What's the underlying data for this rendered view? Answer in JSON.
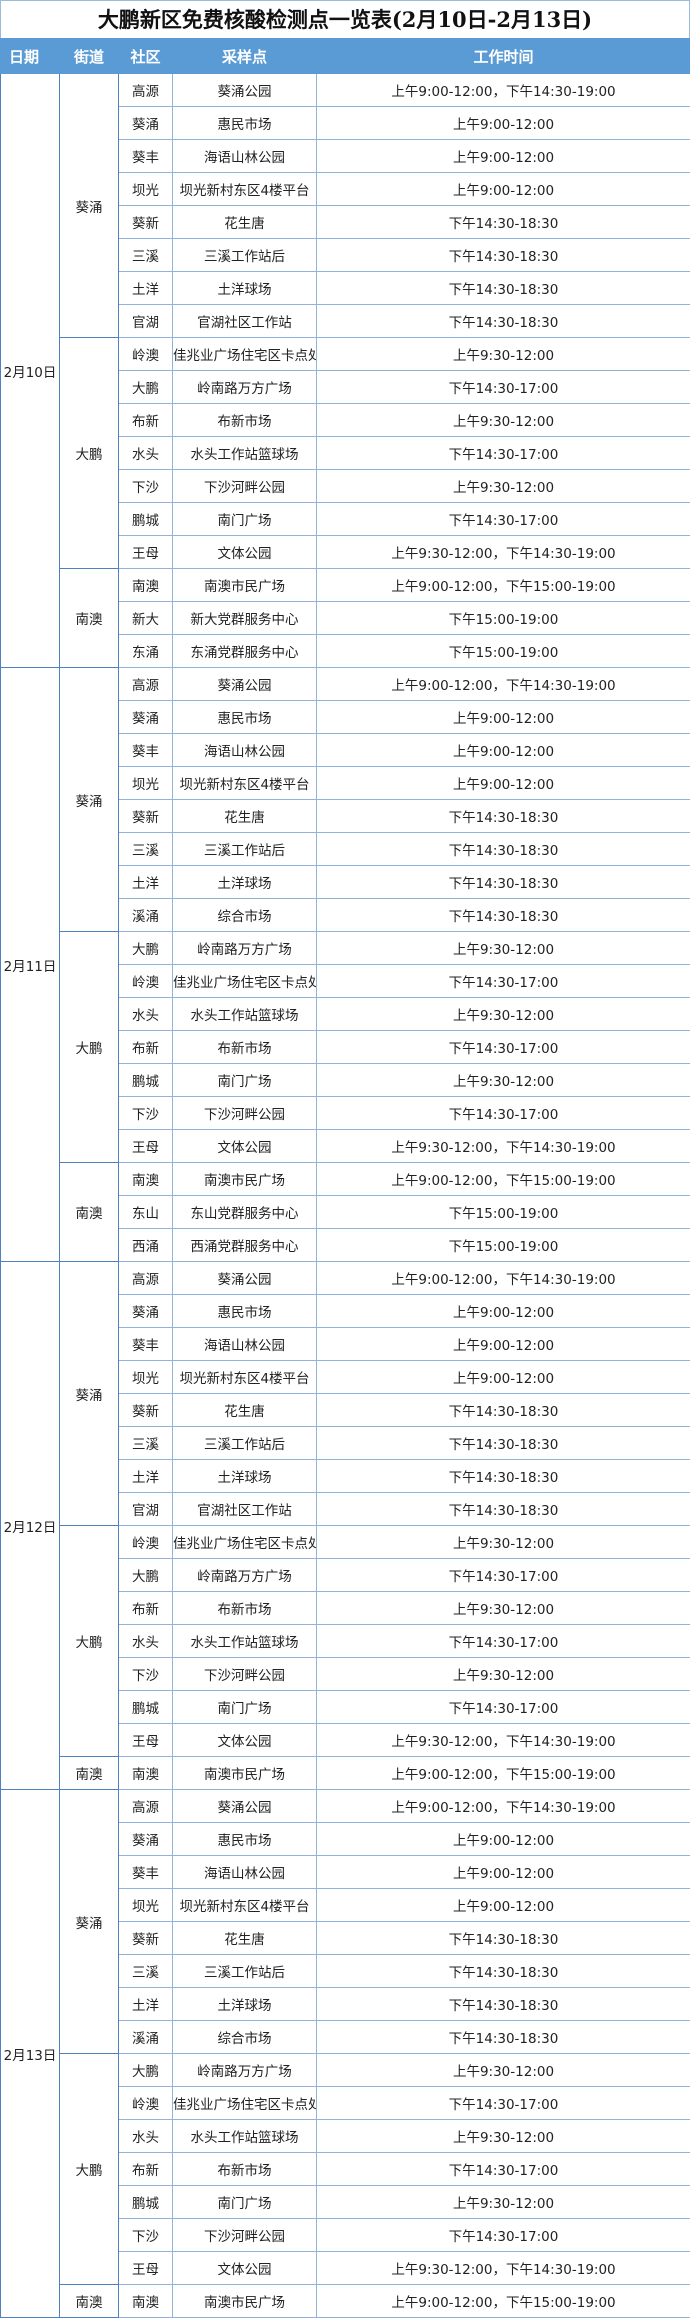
{
  "title": "大鹏新区免费核酸检测点一览表(2月10日-2月13日)",
  "headers": [
    "日期",
    "街道",
    "社区",
    "采样点",
    "工作时间"
  ],
  "colors": {
    "header_bg": "#5b9bd5",
    "header_text": "#ffffff",
    "border": "#8fb3dc"
  },
  "days": [
    {
      "date": "2月10日",
      "districts": [
        {
          "name": "葵涌",
          "rows": [
            [
              "高源",
              "葵涌公园",
              "上午9:00-12:00，下午14:30-19:00"
            ],
            [
              "葵涌",
              "惠民市场",
              "上午9:00-12:00"
            ],
            [
              "葵丰",
              "海语山林公园",
              "上午9:00-12:00"
            ],
            [
              "坝光",
              "坝光新村东区4楼平台",
              "上午9:00-12:00"
            ],
            [
              "葵新",
              "花生唐",
              "下午14:30-18:30"
            ],
            [
              "三溪",
              "三溪工作站后",
              "下午14:30-18:30"
            ],
            [
              "土洋",
              "土洋球场",
              "下午14:30-18:30"
            ],
            [
              "官湖",
              "官湖社区工作站",
              "下午14:30-18:30"
            ]
          ]
        },
        {
          "name": "大鹏",
          "rows": [
            [
              "岭澳",
              "佳兆业广场住宅区卡点处",
              "上午9:30-12:00"
            ],
            [
              "大鹏",
              "岭南路万方广场",
              "下午14:30-17:00"
            ],
            [
              "布新",
              "布新市场",
              "上午9:30-12:00"
            ],
            [
              "水头",
              "水头工作站篮球场",
              "下午14:30-17:00"
            ],
            [
              "下沙",
              "下沙河畔公园",
              "上午9:30-12:00"
            ],
            [
              "鹏城",
              "南门广场",
              "下午14:30-17:00"
            ],
            [
              "王母",
              "文体公园",
              "上午9:30-12:00，下午14:30-19:00"
            ]
          ]
        },
        {
          "name": "南澳",
          "rows": [
            [
              "南澳",
              "南澳市民广场",
              "上午9:00-12:00，下午15:00-19:00"
            ],
            [
              "新大",
              "新大党群服务中心",
              "下午15:00-19:00"
            ],
            [
              "东涌",
              "东涌党群服务中心",
              "下午15:00-19:00"
            ]
          ]
        }
      ]
    },
    {
      "date": "2月11日",
      "districts": [
        {
          "name": "葵涌",
          "rows": [
            [
              "高源",
              "葵涌公园",
              "上午9:00-12:00，下午14:30-19:00"
            ],
            [
              "葵涌",
              "惠民市场",
              "上午9:00-12:00"
            ],
            [
              "葵丰",
              "海语山林公园",
              "上午9:00-12:00"
            ],
            [
              "坝光",
              "坝光新村东区4楼平台",
              "上午9:00-12:00"
            ],
            [
              "葵新",
              "花生唐",
              "下午14:30-18:30"
            ],
            [
              "三溪",
              "三溪工作站后",
              "下午14:30-18:30"
            ],
            [
              "土洋",
              "土洋球场",
              "下午14:30-18:30"
            ],
            [
              "溪涌",
              "综合市场",
              "下午14:30-18:30"
            ]
          ]
        },
        {
          "name": "大鹏",
          "rows": [
            [
              "大鹏",
              "岭南路万方广场",
              "上午9:30-12:00"
            ],
            [
              "岭澳",
              "佳兆业广场住宅区卡点处",
              "下午14:30-17:00"
            ],
            [
              "水头",
              "水头工作站篮球场",
              "上午9:30-12:00"
            ],
            [
              "布新",
              "布新市场",
              "下午14:30-17:00"
            ],
            [
              "鹏城",
              "南门广场",
              "上午9:30-12:00"
            ],
            [
              "下沙",
              "下沙河畔公园",
              "下午14:30-17:00"
            ],
            [
              "王母",
              "文体公园",
              "上午9:30-12:00，下午14:30-19:00"
            ]
          ]
        },
        {
          "name": "南澳",
          "rows": [
            [
              "南澳",
              "南澳市民广场",
              "上午9:00-12:00，下午15:00-19:00"
            ],
            [
              "东山",
              "东山党群服务中心",
              "下午15:00-19:00"
            ],
            [
              "西涌",
              "西涌党群服务中心",
              "下午15:00-19:00"
            ]
          ]
        }
      ]
    },
    {
      "date": "2月12日",
      "districts": [
        {
          "name": "葵涌",
          "rows": [
            [
              "高源",
              "葵涌公园",
              "上午9:00-12:00，下午14:30-19:00"
            ],
            [
              "葵涌",
              "惠民市场",
              "上午9:00-12:00"
            ],
            [
              "葵丰",
              "海语山林公园",
              "上午9:00-12:00"
            ],
            [
              "坝光",
              "坝光新村东区4楼平台",
              "上午9:00-12:00"
            ],
            [
              "葵新",
              "花生唐",
              "下午14:30-18:30"
            ],
            [
              "三溪",
              "三溪工作站后",
              "下午14:30-18:30"
            ],
            [
              "土洋",
              "土洋球场",
              "下午14:30-18:30"
            ],
            [
              "官湖",
              "官湖社区工作站",
              "下午14:30-18:30"
            ]
          ]
        },
        {
          "name": "大鹏",
          "rows": [
            [
              "岭澳",
              "佳兆业广场住宅区卡点处",
              "上午9:30-12:00"
            ],
            [
              "大鹏",
              "岭南路万方广场",
              "下午14:30-17:00"
            ],
            [
              "布新",
              "布新市场",
              "上午9:30-12:00"
            ],
            [
              "水头",
              "水头工作站篮球场",
              "下午14:30-17:00"
            ],
            [
              "下沙",
              "下沙河畔公园",
              "上午9:30-12:00"
            ],
            [
              "鹏城",
              "南门广场",
              "下午14:30-17:00"
            ],
            [
              "王母",
              "文体公园",
              "上午9:30-12:00，下午14:30-19:00"
            ]
          ]
        },
        {
          "name": "南澳",
          "rows": [
            [
              "南澳",
              "南澳市民广场",
              "上午9:00-12:00，下午15:00-19:00"
            ]
          ]
        }
      ]
    },
    {
      "date": "2月13日",
      "districts": [
        {
          "name": "葵涌",
          "rows": [
            [
              "高源",
              "葵涌公园",
              "上午9:00-12:00，下午14:30-19:00"
            ],
            [
              "葵涌",
              "惠民市场",
              "上午9:00-12:00"
            ],
            [
              "葵丰",
              "海语山林公园",
              "上午9:00-12:00"
            ],
            [
              "坝光",
              "坝光新村东区4楼平台",
              "上午9:00-12:00"
            ],
            [
              "葵新",
              "花生唐",
              "下午14:30-18:30"
            ],
            [
              "三溪",
              "三溪工作站后",
              "下午14:30-18:30"
            ],
            [
              "土洋",
              "土洋球场",
              "下午14:30-18:30"
            ],
            [
              "溪涌",
              "综合市场",
              "下午14:30-18:30"
            ]
          ]
        },
        {
          "name": "大鹏",
          "rows": [
            [
              "大鹏",
              "岭南路万方广场",
              "上午9:30-12:00"
            ],
            [
              "岭澳",
              "佳兆业广场住宅区卡点处",
              "下午14:30-17:00"
            ],
            [
              "水头",
              "水头工作站篮球场",
              "上午9:30-12:00"
            ],
            [
              "布新",
              "布新市场",
              "下午14:30-17:00"
            ],
            [
              "鹏城",
              "南门广场",
              "上午9:30-12:00"
            ],
            [
              "下沙",
              "下沙河畔公园",
              "下午14:30-17:00"
            ],
            [
              "王母",
              "文体公园",
              "上午9:30-12:00，下午14:30-19:00"
            ]
          ]
        },
        {
          "name": "南澳",
          "rows": [
            [
              "南澳",
              "南澳市民广场",
              "上午9:00-12:00，下午15:00-19:00"
            ]
          ]
        }
      ]
    }
  ]
}
